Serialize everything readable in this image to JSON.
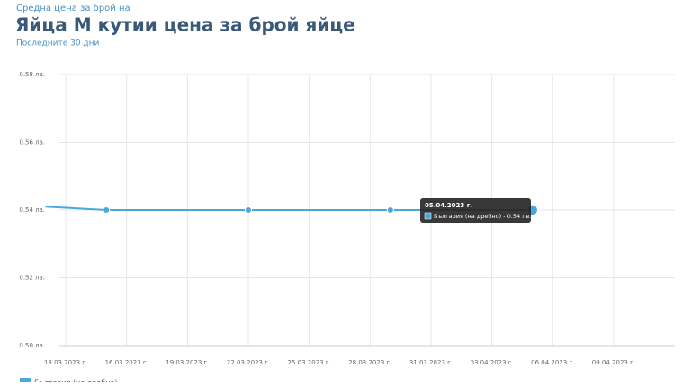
{
  "chart_data": {
    "type": "line",
    "kicker": "Средна цена за брой на",
    "title": "Яйца M кутии цена за брой яйце",
    "subtitle": "Последните 30 дни",
    "x": [
      "12.03.2023",
      "15.03.2023",
      "22.03.2023",
      "29.03.2023",
      "05.04.2023"
    ],
    "series": [
      {
        "name": "България (на дребно)",
        "color": "#4ba6d9",
        "values": [
          0.541,
          0.54,
          0.54,
          0.54,
          0.54
        ]
      }
    ],
    "xlim": [
      "12.03.2023",
      "11.04.2023"
    ],
    "xticks": [
      {
        "value": "13.03.2023",
        "label": "13.03.2023 г."
      },
      {
        "value": "16.03.2023",
        "label": "16.03.2023 г."
      },
      {
        "value": "19.03.2023",
        "label": "19.03.2023 г."
      },
      {
        "value": "22.03.2023",
        "label": "22.03.2023 г."
      },
      {
        "value": "25.03.2023",
        "label": "25.03.2023 г."
      },
      {
        "value": "28.03.2023",
        "label": "28.03.2023 г."
      },
      {
        "value": "31.03.2023",
        "label": "31.03.2023 г."
      },
      {
        "value": "03.04.2023",
        "label": "03.04.2023 г."
      },
      {
        "value": "06.04.2023",
        "label": "06.04.2023 г."
      },
      {
        "value": "09.04.2023",
        "label": "09.04.2023 г."
      }
    ],
    "ylim": [
      0.5,
      0.58
    ],
    "yticks": [
      {
        "value": 0.5,
        "label": "0.50 лв."
      },
      {
        "value": 0.52,
        "label": "0.52 лв."
      },
      {
        "value": 0.54,
        "label": "0.54 лв."
      },
      {
        "value": 0.56,
        "label": "0.56 лв."
      },
      {
        "value": 0.58,
        "label": "0.58 лв."
      }
    ],
    "grid": true,
    "tooltip": {
      "title": "05.04.2023 г.",
      "text": "България (на дребно) - 0.54 лв."
    }
  }
}
